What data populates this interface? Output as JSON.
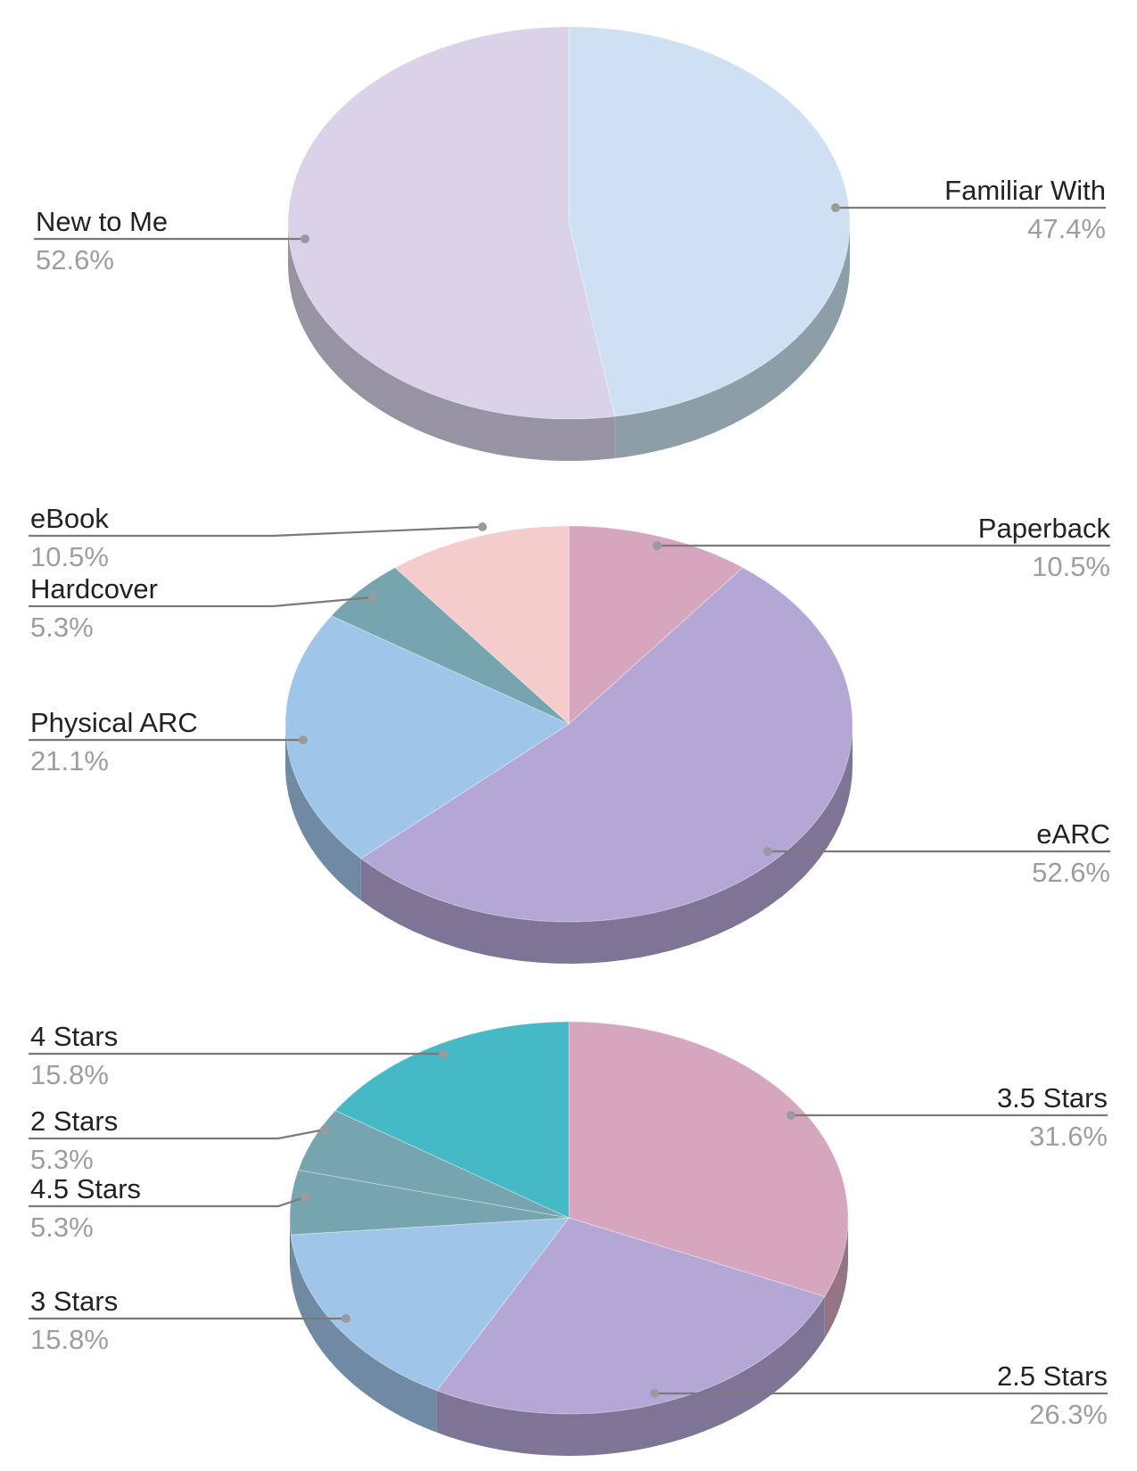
{
  "chart_data": [
    {
      "type": "pie",
      "style": "3d",
      "slices": [
        {
          "label": "Familiar With",
          "value": 47.4,
          "value_label": "47.4%",
          "color": "#cfe0f3",
          "side_color": "#8d9ea8"
        },
        {
          "label": "New to Me",
          "value": 52.6,
          "value_label": "52.6%",
          "color": "#d9d2e9",
          "side_color": "#9893a3"
        }
      ]
    },
    {
      "type": "pie",
      "style": "3d",
      "slices": [
        {
          "label": "Paperback",
          "value": 10.5,
          "value_label": "10.5%",
          "color": "#d5a6bd",
          "side_color": "#957484"
        },
        {
          "label": "eARC",
          "value": 52.6,
          "value_label": "52.6%",
          "color": "#b4a7d6",
          "side_color": "#7e7495"
        },
        {
          "label": "Physical ARC",
          "value": 21.1,
          "value_label": "21.1%",
          "color": "#9fc5e8",
          "side_color": "#6f8aa2"
        },
        {
          "label": "Hardcover",
          "value": 5.3,
          "value_label": "5.3%",
          "color": "#76a5af",
          "side_color": "#52737a"
        },
        {
          "label": "eBook",
          "value": 10.5,
          "value_label": "10.5%",
          "color": "#f4cccc",
          "side_color": "#aa8e8e"
        }
      ]
    },
    {
      "type": "pie",
      "style": "3d",
      "slices": [
        {
          "label": "3.5 Stars",
          "value": 31.6,
          "value_label": "31.6%",
          "color": "#d5a6bd",
          "side_color": "#957484"
        },
        {
          "label": "2.5 Stars",
          "value": 26.3,
          "value_label": "26.3%",
          "color": "#b4a7d6",
          "side_color": "#7e7495"
        },
        {
          "label": "3 Stars",
          "value": 15.8,
          "value_label": "15.8%",
          "color": "#9fc5e8",
          "side_color": "#6f8aa2"
        },
        {
          "label": "4.5 Stars",
          "value": 5.3,
          "value_label": "5.3%",
          "color": "#76a5af",
          "side_color": "#52737a"
        },
        {
          "label": "2 Stars",
          "value": 5.3,
          "value_label": "5.3%",
          "color": "#76a5af",
          "side_color": "#52737a"
        },
        {
          "label": "4 Stars",
          "value": 15.8,
          "value_label": "15.8%",
          "color": "#45bac6",
          "side_color": "#30828a"
        }
      ]
    }
  ]
}
